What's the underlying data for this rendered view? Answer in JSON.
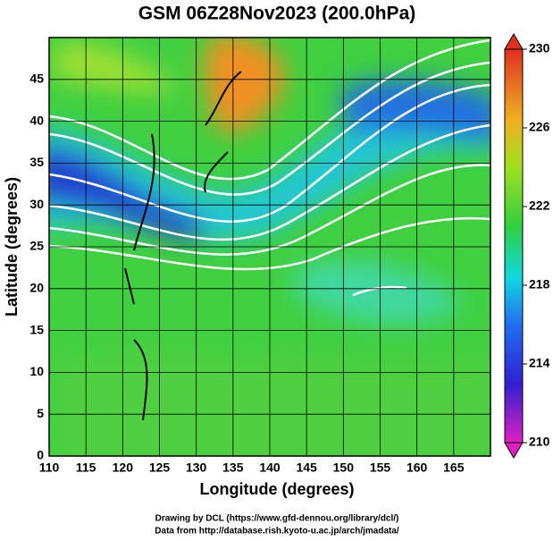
{
  "chart_data": {
    "type": "map",
    "title": "GSM 06Z28Nov2023 (200.0hPa)",
    "xlabel": "Longitude (degrees)",
    "ylabel": "Latitude  (degrees)",
    "xlim": [
      110,
      170
    ],
    "ylim": [
      0,
      50
    ],
    "xticks": [
      110,
      115,
      120,
      125,
      130,
      135,
      140,
      145,
      150,
      155,
      160,
      165
    ],
    "yticks": [
      0,
      5,
      10,
      15,
      20,
      25,
      30,
      35,
      40,
      45
    ],
    "colorbar": {
      "lim": [
        210,
        230
      ],
      "ticks": [
        210,
        214,
        218,
        222,
        226,
        230
      ]
    },
    "notes": [
      "Drawing by DCL (https://www.gfd-dennou.org/library/dcl/)",
      "Data from http://database.rish.kyoto-u.ac.jp/arch/jmadata/"
    ]
  }
}
